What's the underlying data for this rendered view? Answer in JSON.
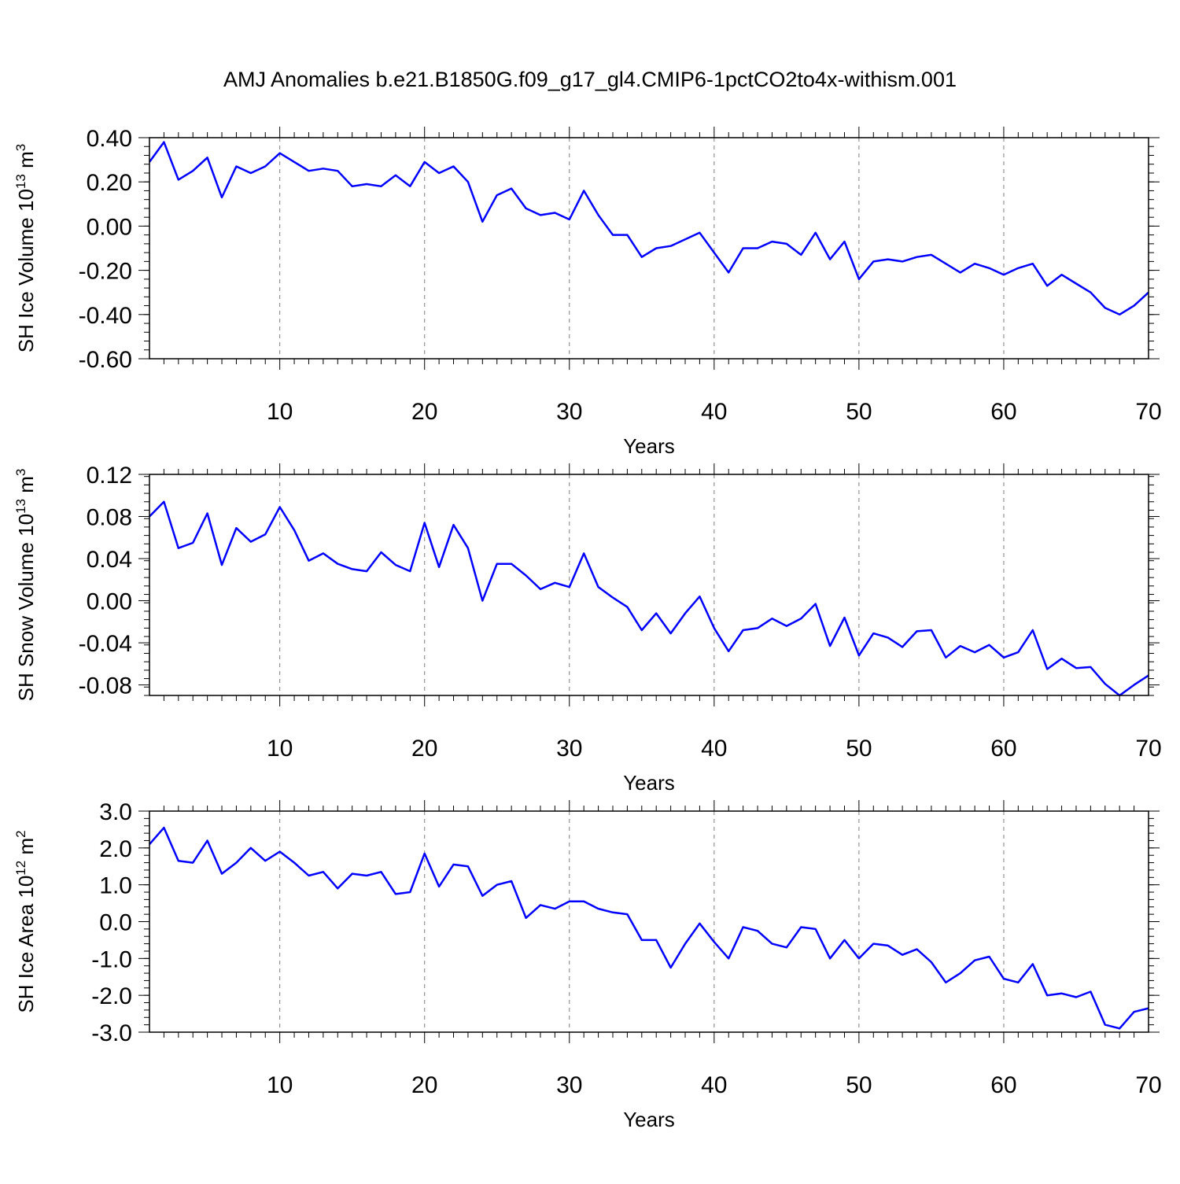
{
  "title": "AMJ Anomalies b.e21.B1850G.f09_g17_gl4.CMIP6-1pctCO2to4x-withism.001",
  "colors": {
    "series": "#0000ff",
    "axes": "#000000",
    "grid": "#7f7f7f"
  },
  "chart_data": [
    {
      "type": "line",
      "ylabel_text": "SH Ice Volume 10",
      "ylabel_exp": "13",
      "ylabel_unit": " m",
      "ylabel_unit_exp": "3",
      "xlabel": "Years",
      "xlim": [
        1,
        70
      ],
      "ylim": [
        -0.6,
        0.4
      ],
      "x_ticks": [
        10,
        20,
        30,
        40,
        50,
        60,
        70
      ],
      "y_ticks": [
        0.4,
        0.2,
        0.0,
        -0.2,
        -0.4,
        -0.6
      ],
      "y_tick_labels": [
        "0.40",
        "0.20",
        "0.00",
        "-0.20",
        "-0.40",
        "-0.60"
      ],
      "grid": "vertical-dashed",
      "x": [
        1,
        2,
        3,
        4,
        5,
        6,
        7,
        8,
        9,
        10,
        11,
        12,
        13,
        14,
        15,
        16,
        17,
        18,
        19,
        20,
        21,
        22,
        23,
        24,
        25,
        26,
        27,
        28,
        29,
        30,
        31,
        32,
        33,
        34,
        35,
        36,
        37,
        38,
        39,
        40,
        41,
        42,
        43,
        44,
        45,
        46,
        47,
        48,
        49,
        50,
        51,
        52,
        53,
        54,
        55,
        56,
        57,
        58,
        59,
        60,
        61,
        62,
        63,
        64,
        65,
        66,
        67,
        68,
        69,
        70
      ],
      "values": [
        0.29,
        0.38,
        0.21,
        0.25,
        0.31,
        0.13,
        0.27,
        0.24,
        0.27,
        0.33,
        0.29,
        0.25,
        0.26,
        0.25,
        0.18,
        0.19,
        0.18,
        0.23,
        0.18,
        0.29,
        0.24,
        0.27,
        0.2,
        0.02,
        0.14,
        0.17,
        0.08,
        0.05,
        0.06,
        0.03,
        0.16,
        0.05,
        -0.04,
        -0.04,
        -0.14,
        -0.1,
        -0.09,
        -0.06,
        -0.03,
        -0.12,
        -0.21,
        -0.1,
        -0.1,
        -0.07,
        -0.08,
        -0.13,
        -0.03,
        -0.15,
        -0.07,
        -0.24,
        -0.16,
        -0.15,
        -0.16,
        -0.14,
        -0.13,
        -0.17,
        -0.21,
        -0.17,
        -0.19,
        -0.22,
        -0.19,
        -0.17,
        -0.27,
        -0.22,
        -0.26,
        -0.3,
        -0.37,
        -0.4,
        -0.36,
        -0.3
      ]
    },
    {
      "type": "line",
      "ylabel_text": "SH Snow Volume 10",
      "ylabel_exp": "13",
      "ylabel_unit": " m",
      "ylabel_unit_exp": "3",
      "xlabel": "Years",
      "xlim": [
        1,
        70
      ],
      "ylim": [
        -0.09,
        0.12
      ],
      "x_ticks": [
        10,
        20,
        30,
        40,
        50,
        60,
        70
      ],
      "y_ticks": [
        0.12,
        0.08,
        0.04,
        0.0,
        -0.04,
        -0.08
      ],
      "y_tick_labels": [
        "0.12",
        "0.08",
        "0.04",
        "0.00",
        "-0.04",
        "-0.08"
      ],
      "grid": "vertical-dashed",
      "x": [
        1,
        2,
        3,
        4,
        5,
        6,
        7,
        8,
        9,
        10,
        11,
        12,
        13,
        14,
        15,
        16,
        17,
        18,
        19,
        20,
        21,
        22,
        23,
        24,
        25,
        26,
        27,
        28,
        29,
        30,
        31,
        32,
        33,
        34,
        35,
        36,
        37,
        38,
        39,
        40,
        41,
        42,
        43,
        44,
        45,
        46,
        47,
        48,
        49,
        50,
        51,
        52,
        53,
        54,
        55,
        56,
        57,
        58,
        59,
        60,
        61,
        62,
        63,
        64,
        65,
        66,
        67,
        68,
        69,
        70
      ],
      "values": [
        0.08,
        0.094,
        0.05,
        0.055,
        0.083,
        0.034,
        0.069,
        0.056,
        0.063,
        0.089,
        0.067,
        0.038,
        0.045,
        0.035,
        0.03,
        0.028,
        0.046,
        0.034,
        0.028,
        0.074,
        0.032,
        0.072,
        0.05,
        0.0,
        0.035,
        0.035,
        0.024,
        0.011,
        0.017,
        0.013,
        0.045,
        0.013,
        0.003,
        -0.006,
        -0.028,
        -0.012,
        -0.031,
        -0.012,
        0.004,
        -0.026,
        -0.048,
        -0.028,
        -0.026,
        -0.017,
        -0.024,
        -0.017,
        -0.003,
        -0.043,
        -0.016,
        -0.052,
        -0.031,
        -0.035,
        -0.044,
        -0.029,
        -0.028,
        -0.054,
        -0.043,
        -0.049,
        -0.042,
        -0.054,
        -0.049,
        -0.028,
        -0.065,
        -0.055,
        -0.064,
        -0.063,
        -0.079,
        -0.09,
        -0.08,
        -0.071
      ]
    },
    {
      "type": "line",
      "ylabel_text": "SH Ice Area 10",
      "ylabel_exp": "12",
      "ylabel_unit": " m",
      "ylabel_unit_exp": "2",
      "xlabel": "Years",
      "xlim": [
        1,
        70
      ],
      "ylim": [
        -3.0,
        3.0
      ],
      "x_ticks": [
        10,
        20,
        30,
        40,
        50,
        60,
        70
      ],
      "y_ticks": [
        3.0,
        2.0,
        1.0,
        0.0,
        -1.0,
        -2.0,
        -3.0
      ],
      "y_tick_labels": [
        "3.0",
        "2.0",
        "1.0",
        "0.0",
        "-1.0",
        "-2.0",
        "-3.0"
      ],
      "grid": "vertical-dashed",
      "x": [
        1,
        2,
        3,
        4,
        5,
        6,
        7,
        8,
        9,
        10,
        11,
        12,
        13,
        14,
        15,
        16,
        17,
        18,
        19,
        20,
        21,
        22,
        23,
        24,
        25,
        26,
        27,
        28,
        29,
        30,
        31,
        32,
        33,
        34,
        35,
        36,
        37,
        38,
        39,
        40,
        41,
        42,
        43,
        44,
        45,
        46,
        47,
        48,
        49,
        50,
        51,
        52,
        53,
        54,
        55,
        56,
        57,
        58,
        59,
        60,
        61,
        62,
        63,
        64,
        65,
        66,
        67,
        68,
        69,
        70
      ],
      "values": [
        2.1,
        2.55,
        1.65,
        1.6,
        2.2,
        1.3,
        1.6,
        2.0,
        1.65,
        1.9,
        1.6,
        1.25,
        1.35,
        0.9,
        1.3,
        1.25,
        1.35,
        0.75,
        0.8,
        1.85,
        0.95,
        1.55,
        1.5,
        0.7,
        1.0,
        1.1,
        0.1,
        0.45,
        0.35,
        0.55,
        0.55,
        0.35,
        0.25,
        0.2,
        -0.5,
        -0.5,
        -1.25,
        -0.6,
        -0.05,
        -0.55,
        -1.0,
        -0.15,
        -0.25,
        -0.6,
        -0.7,
        -0.15,
        -0.2,
        -1.0,
        -0.5,
        -1.0,
        -0.6,
        -0.65,
        -0.9,
        -0.75,
        -1.1,
        -1.65,
        -1.4,
        -1.05,
        -0.95,
        -1.55,
        -1.65,
        -1.15,
        -2.0,
        -1.95,
        -2.05,
        -1.9,
        -2.8,
        -2.9,
        -2.45,
        -2.35
      ]
    }
  ]
}
